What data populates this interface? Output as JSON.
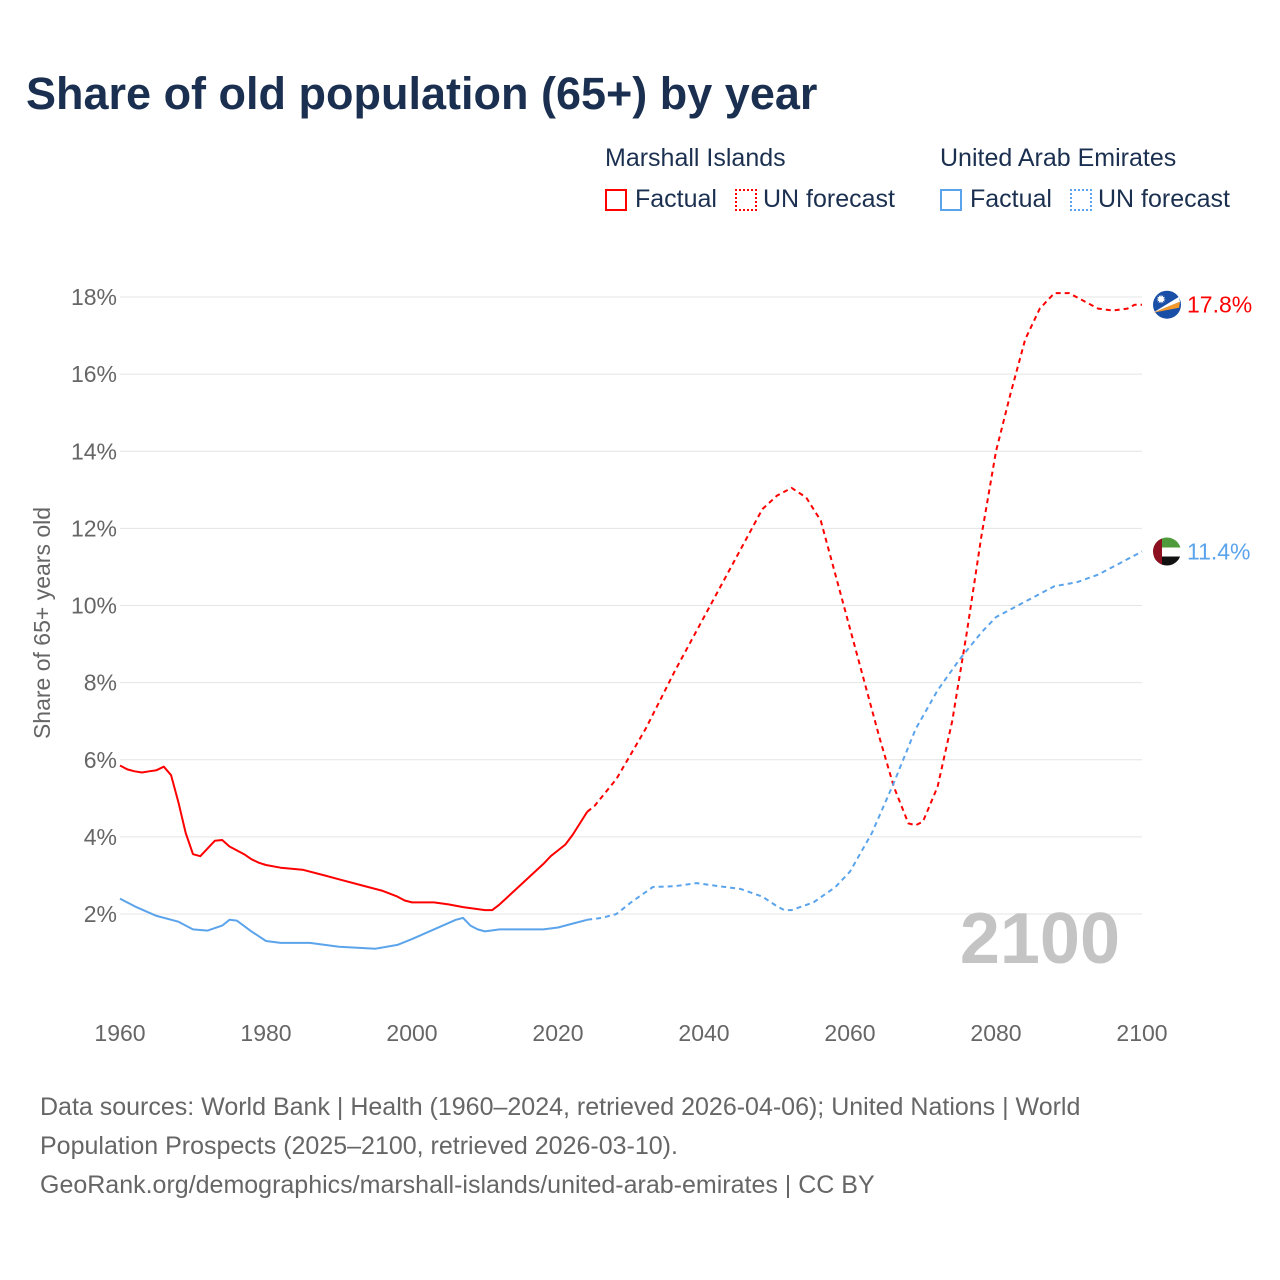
{
  "title": "Share of old population (65+) by year",
  "legend": {
    "groups": [
      {
        "name": "Marshall Islands",
        "color": "#ff0000",
        "factual": "Factual",
        "forecast": "UN forecast"
      },
      {
        "name": "United Arab Emirates",
        "color": "#5ba4ec",
        "factual": "Factual",
        "forecast": "UN forecast"
      }
    ]
  },
  "year_watermark": "2100",
  "source": {
    "line1": "Data sources: World Bank | Health (1960–2024, retrieved 2026-04-06); United Nations | World",
    "line2": "Population Prospects (2025–2100, retrieved 2026-03-10).",
    "line3": "GeoRank.org/demographics/marshall-islands/united-arab-emirates | CC BY"
  },
  "chart_data": {
    "type": "line",
    "title": "Share of old population (65+) by year",
    "xlabel": "",
    "ylabel": "Share of 65+ years old",
    "xlim": [
      1960,
      2100
    ],
    "ylim": [
      0,
      18.5
    ],
    "xticks": [
      1960,
      1980,
      2000,
      2020,
      2040,
      2060,
      2080,
      2100
    ],
    "yticks": [
      2,
      4,
      6,
      8,
      10,
      12,
      14,
      16,
      18
    ],
    "ytick_labels": [
      "2%",
      "4%",
      "6%",
      "8%",
      "10%",
      "12%",
      "14%",
      "16%",
      "18%"
    ],
    "grid": true,
    "end_labels": [
      "17.8%",
      "11.4%"
    ],
    "series": [
      {
        "name": "Marshall Islands",
        "kind": "Factual",
        "color": "#ff0000",
        "dashed": false,
        "x": [
          1960,
          1961,
          1962,
          1963,
          1964,
          1965,
          1966,
          1967,
          1968,
          1969,
          1970,
          1971,
          1972,
          1973,
          1974,
          1975,
          1976,
          1977,
          1978,
          1979,
          1980,
          1982,
          1985,
          1988,
          1990,
          1993,
          1996,
          1998,
          1999,
          2000,
          2003,
          2005,
          2007,
          2010,
          2011,
          2012,
          2014,
          2016,
          2018,
          2019,
          2020,
          2021,
          2022,
          2023,
          2024
        ],
        "y": [
          5.85,
          5.75,
          5.7,
          5.67,
          5.7,
          5.73,
          5.82,
          5.6,
          4.9,
          4.1,
          3.55,
          3.5,
          3.7,
          3.9,
          3.92,
          3.75,
          3.65,
          3.55,
          3.42,
          3.33,
          3.27,
          3.2,
          3.15,
          3.0,
          2.9,
          2.75,
          2.6,
          2.45,
          2.35,
          2.3,
          2.3,
          2.25,
          2.18,
          2.1,
          2.1,
          2.25,
          2.6,
          2.95,
          3.3,
          3.5,
          3.65,
          3.8,
          4.05,
          4.35,
          4.65
        ]
      },
      {
        "name": "Marshall Islands",
        "kind": "UN forecast",
        "color": "#ff0000",
        "dashed": true,
        "x": [
          2024,
          2025,
          2028,
          2032,
          2036,
          2040,
          2044,
          2048,
          2050,
          2052,
          2054,
          2056,
          2058,
          2060,
          2062,
          2064,
          2066,
          2068,
          2069,
          2070,
          2072,
          2074,
          2076,
          2078,
          2080,
          2082,
          2084,
          2086,
          2088,
          2090,
          2092,
          2094,
          2096,
          2098,
          2099,
          2100
        ],
        "y": [
          4.65,
          4.8,
          5.5,
          6.8,
          8.3,
          9.7,
          11.1,
          12.5,
          12.85,
          13.05,
          12.8,
          12.2,
          10.8,
          9.4,
          8.0,
          6.6,
          5.3,
          4.35,
          4.3,
          4.4,
          5.3,
          7.0,
          9.3,
          11.8,
          14.0,
          15.5,
          16.9,
          17.7,
          18.1,
          18.1,
          17.9,
          17.7,
          17.65,
          17.7,
          17.8,
          17.8
        ]
      },
      {
        "name": "United Arab Emirates",
        "kind": "Factual",
        "color": "#5ba4ec",
        "dashed": false,
        "x": [
          1960,
          1962,
          1965,
          1968,
          1970,
          1972,
          1974,
          1975,
          1976,
          1978,
          1980,
          1982,
          1986,
          1990,
          1995,
          1998,
          2000,
          2003,
          2006,
          2007,
          2008,
          2009,
          2010,
          2012,
          2015,
          2018,
          2020,
          2022,
          2024
        ],
        "y": [
          2.4,
          2.2,
          1.95,
          1.8,
          1.6,
          1.57,
          1.7,
          1.85,
          1.83,
          1.55,
          1.3,
          1.25,
          1.25,
          1.15,
          1.1,
          1.2,
          1.35,
          1.6,
          1.85,
          1.9,
          1.7,
          1.6,
          1.55,
          1.6,
          1.6,
          1.6,
          1.65,
          1.75,
          1.85
        ]
      },
      {
        "name": "United Arab Emirates",
        "kind": "UN forecast",
        "color": "#5ba4ec",
        "dashed": true,
        "x": [
          2024,
          2026,
          2028,
          2030,
          2033,
          2036,
          2039,
          2042,
          2045,
          2048,
          2050,
          2051,
          2052,
          2055,
          2058,
          2060,
          2063,
          2066,
          2069,
          2072,
          2075,
          2078,
          2080,
          2083,
          2086,
          2088,
          2091,
          2094,
          2097,
          2100
        ],
        "y": [
          1.85,
          1.9,
          2.0,
          2.3,
          2.7,
          2.72,
          2.8,
          2.72,
          2.65,
          2.45,
          2.2,
          2.1,
          2.1,
          2.3,
          2.7,
          3.1,
          4.1,
          5.4,
          6.8,
          7.8,
          8.6,
          9.3,
          9.7,
          10.0,
          10.3,
          10.5,
          10.6,
          10.8,
          11.1,
          11.4
        ]
      }
    ]
  }
}
